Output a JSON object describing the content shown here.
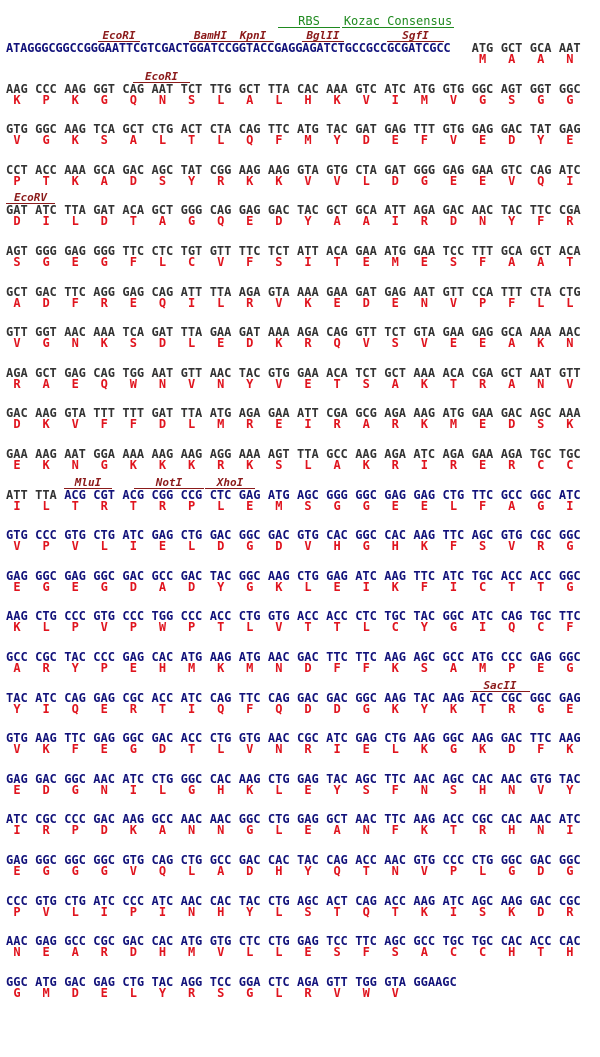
{
  "colors": {
    "vector_dna": "#333333",
    "insert_dna": "#12127a",
    "amino_acid": "#e0141e",
    "restriction_site": "#8b1a1a",
    "feature": "#1f8a1f"
  },
  "leader_sequence": "ATAGGGCGGCCGGGAATTCGTCGACTGGATCCGGTACCGAGGAGATCTGCCGCCGCGATCGCC",
  "insert_start": {
    "row": 11,
    "codon": 2
  },
  "features": [
    {
      "name": "RBS"
    },
    {
      "name": "Kozac Consensus"
    }
  ],
  "sites": [
    {
      "name": "EcoRI",
      "row": 0
    },
    {
      "name": "BamHI",
      "row": 0
    },
    {
      "name": "KpnI",
      "row": 0
    },
    {
      "name": "BglII",
      "row": 0
    },
    {
      "name": "SgfI",
      "row": 0
    },
    {
      "name": "EcoRI",
      "row": 1
    },
    {
      "name": "EcoRV",
      "row": 4
    },
    {
      "name": "MluI",
      "row": 11
    },
    {
      "name": "NotI",
      "row": 11
    },
    {
      "name": "XhoI",
      "row": 11
    },
    {
      "name": "SacII",
      "row": 16
    }
  ],
  "rows": [
    {
      "codons": [
        "ATG",
        "GCT",
        "GCA",
        "AAT"
      ],
      "aa": [
        "M",
        "A",
        "A",
        "N"
      ]
    },
    {
      "codons": [
        "AAG",
        "CCC",
        "AAG",
        "GGT",
        "CAG",
        "AAT",
        "TCT",
        "TTG",
        "GCT",
        "TTA",
        "CAC",
        "AAA",
        "GTC",
        "ATC",
        "ATG",
        "GTG",
        "GGC",
        "AGT",
        "GGT",
        "GGC"
      ],
      "aa": [
        "K",
        "P",
        "K",
        "G",
        "Q",
        "N",
        "S",
        "L",
        "A",
        "L",
        "H",
        "K",
        "V",
        "I",
        "M",
        "V",
        "G",
        "S",
        "G",
        "G"
      ]
    },
    {
      "codons": [
        "GTG",
        "GGC",
        "AAG",
        "TCA",
        "GCT",
        "CTG",
        "ACT",
        "CTA",
        "CAG",
        "TTC",
        "ATG",
        "TAC",
        "GAT",
        "GAG",
        "TTT",
        "GTG",
        "GAG",
        "GAC",
        "TAT",
        "GAG"
      ],
      "aa": [
        "V",
        "G",
        "K",
        "S",
        "A",
        "L",
        "T",
        "L",
        "Q",
        "F",
        "M",
        "Y",
        "D",
        "E",
        "F",
        "V",
        "E",
        "D",
        "Y",
        "E"
      ]
    },
    {
      "codons": [
        "CCT",
        "ACC",
        "AAA",
        "GCA",
        "GAC",
        "AGC",
        "TAT",
        "CGG",
        "AAG",
        "AAG",
        "GTA",
        "GTG",
        "CTA",
        "GAT",
        "GGG",
        "GAG",
        "GAA",
        "GTC",
        "CAG",
        "ATC"
      ],
      "aa": [
        "P",
        "T",
        "K",
        "A",
        "D",
        "S",
        "Y",
        "R",
        "K",
        "K",
        "V",
        "V",
        "L",
        "D",
        "G",
        "E",
        "E",
        "V",
        "Q",
        "I"
      ]
    },
    {
      "codons": [
        "GAT",
        "ATC",
        "TTA",
        "GAT",
        "ACA",
        "GCT",
        "GGG",
        "CAG",
        "GAG",
        "GAC",
        "TAC",
        "GCT",
        "GCA",
        "ATT",
        "AGA",
        "GAC",
        "AAC",
        "TAC",
        "TTC",
        "CGA"
      ],
      "aa": [
        "D",
        "I",
        "L",
        "D",
        "T",
        "A",
        "G",
        "Q",
        "E",
        "D",
        "Y",
        "A",
        "A",
        "I",
        "R",
        "D",
        "N",
        "Y",
        "F",
        "R"
      ]
    },
    {
      "codons": [
        "AGT",
        "GGG",
        "GAG",
        "GGG",
        "TTC",
        "CTC",
        "TGT",
        "GTT",
        "TTC",
        "TCT",
        "ATT",
        "ACA",
        "GAA",
        "ATG",
        "GAA",
        "TCC",
        "TTT",
        "GCA",
        "GCT",
        "ACA"
      ],
      "aa": [
        "S",
        "G",
        "E",
        "G",
        "F",
        "L",
        "C",
        "V",
        "F",
        "S",
        "I",
        "T",
        "E",
        "M",
        "E",
        "S",
        "F",
        "A",
        "A",
        "T"
      ]
    },
    {
      "codons": [
        "GCT",
        "GAC",
        "TTC",
        "AGG",
        "GAG",
        "CAG",
        "ATT",
        "TTA",
        "AGA",
        "GTA",
        "AAA",
        "GAA",
        "GAT",
        "GAG",
        "AAT",
        "GTT",
        "CCA",
        "TTT",
        "CTA",
        "CTG"
      ],
      "aa": [
        "A",
        "D",
        "F",
        "R",
        "E",
        "Q",
        "I",
        "L",
        "R",
        "V",
        "K",
        "E",
        "D",
        "E",
        "N",
        "V",
        "P",
        "F",
        "L",
        "L"
      ]
    },
    {
      "codons": [
        "GTT",
        "GGT",
        "AAC",
        "AAA",
        "TCA",
        "GAT",
        "TTA",
        "GAA",
        "GAT",
        "AAA",
        "AGA",
        "CAG",
        "GTT",
        "TCT",
        "GTA",
        "GAA",
        "GAG",
        "GCA",
        "AAA",
        "AAC"
      ],
      "aa": [
        "V",
        "G",
        "N",
        "K",
        "S",
        "D",
        "L",
        "E",
        "D",
        "K",
        "R",
        "Q",
        "V",
        "S",
        "V",
        "E",
        "E",
        "A",
        "K",
        "N"
      ]
    },
    {
      "codons": [
        "AGA",
        "GCT",
        "GAG",
        "CAG",
        "TGG",
        "AAT",
        "GTT",
        "AAC",
        "TAC",
        "GTG",
        "GAA",
        "ACA",
        "TCT",
        "GCT",
        "AAA",
        "ACA",
        "CGA",
        "GCT",
        "AAT",
        "GTT"
      ],
      "aa": [
        "R",
        "A",
        "E",
        "Q",
        "W",
        "N",
        "V",
        "N",
        "Y",
        "V",
        "E",
        "T",
        "S",
        "A",
        "K",
        "T",
        "R",
        "A",
        "N",
        "V"
      ]
    },
    {
      "codons": [
        "GAC",
        "AAG",
        "GTA",
        "TTT",
        "TTT",
        "GAT",
        "TTA",
        "ATG",
        "AGA",
        "GAA",
        "ATT",
        "CGA",
        "GCG",
        "AGA",
        "AAG",
        "ATG",
        "GAA",
        "GAC",
        "AGC",
        "AAA"
      ],
      "aa": [
        "D",
        "K",
        "V",
        "F",
        "F",
        "D",
        "L",
        "M",
        "R",
        "E",
        "I",
        "R",
        "A",
        "R",
        "K",
        "M",
        "E",
        "D",
        "S",
        "K"
      ]
    },
    {
      "codons": [
        "GAA",
        "AAG",
        "AAT",
        "GGA",
        "AAA",
        "AAG",
        "AAG",
        "AGG",
        "AAA",
        "AGT",
        "TTA",
        "GCC",
        "AAG",
        "AGA",
        "ATC",
        "AGA",
        "GAA",
        "AGA",
        "TGC",
        "TGC"
      ],
      "aa": [
        "E",
        "K",
        "N",
        "G",
        "K",
        "K",
        "K",
        "R",
        "K",
        "S",
        "L",
        "A",
        "K",
        "R",
        "I",
        "R",
        "E",
        "R",
        "C",
        "C"
      ]
    },
    {
      "codons": [
        "ATT",
        "TTA",
        "ACG",
        "CGT",
        "ACG",
        "CGG",
        "CCG",
        "CTC",
        "GAG",
        "ATG",
        "AGC",
        "GGG",
        "GGC",
        "GAG",
        "GAG",
        "CTG",
        "TTC",
        "GCC",
        "GGC",
        "ATC"
      ],
      "aa": [
        "I",
        "L",
        "T",
        "R",
        "T",
        "R",
        "P",
        "L",
        "E",
        "M",
        "S",
        "G",
        "G",
        "E",
        "E",
        "L",
        "F",
        "A",
        "G",
        "I"
      ]
    },
    {
      "codons": [
        "GTG",
        "CCC",
        "GTG",
        "CTG",
        "ATC",
        "GAG",
        "CTG",
        "GAC",
        "GGC",
        "GAC",
        "GTG",
        "CAC",
        "GGC",
        "CAC",
        "AAG",
        "TTC",
        "AGC",
        "GTG",
        "CGC",
        "GGC"
      ],
      "aa": [
        "V",
        "P",
        "V",
        "L",
        "I",
        "E",
        "L",
        "D",
        "G",
        "D",
        "V",
        "H",
        "G",
        "H",
        "K",
        "F",
        "S",
        "V",
        "R",
        "G"
      ]
    },
    {
      "codons": [
        "GAG",
        "GGC",
        "GAG",
        "GGC",
        "GAC",
        "GCC",
        "GAC",
        "TAC",
        "GGC",
        "AAG",
        "CTG",
        "GAG",
        "ATC",
        "AAG",
        "TTC",
        "ATC",
        "TGC",
        "ACC",
        "ACC",
        "GGC"
      ],
      "aa": [
        "E",
        "G",
        "E",
        "G",
        "D",
        "A",
        "D",
        "Y",
        "G",
        "K",
        "L",
        "E",
        "I",
        "K",
        "F",
        "I",
        "C",
        "T",
        "T",
        "G"
      ]
    },
    {
      "codons": [
        "AAG",
        "CTG",
        "CCC",
        "GTG",
        "CCC",
        "TGG",
        "CCC",
        "ACC",
        "CTG",
        "GTG",
        "ACC",
        "ACC",
        "CTC",
        "TGC",
        "TAC",
        "GGC",
        "ATC",
        "CAG",
        "TGC",
        "TTC"
      ],
      "aa": [
        "K",
        "L",
        "P",
        "V",
        "P",
        "W",
        "P",
        "T",
        "L",
        "V",
        "T",
        "T",
        "L",
        "C",
        "Y",
        "G",
        "I",
        "Q",
        "C",
        "F"
      ]
    },
    {
      "codons": [
        "GCC",
        "CGC",
        "TAC",
        "CCC",
        "GAG",
        "CAC",
        "ATG",
        "AAG",
        "ATG",
        "AAC",
        "GAC",
        "TTC",
        "TTC",
        "AAG",
        "AGC",
        "GCC",
        "ATG",
        "CCC",
        "GAG",
        "GGC"
      ],
      "aa": [
        "A",
        "R",
        "Y",
        "P",
        "E",
        "H",
        "M",
        "K",
        "M",
        "N",
        "D",
        "F",
        "F",
        "K",
        "S",
        "A",
        "M",
        "P",
        "E",
        "G"
      ]
    },
    {
      "codons": [
        "TAC",
        "ATC",
        "CAG",
        "GAG",
        "CGC",
        "ACC",
        "ATC",
        "CAG",
        "TTC",
        "CAG",
        "GAC",
        "GAC",
        "GGC",
        "AAG",
        "TAC",
        "AAG",
        "ACC",
        "CGC",
        "GGC",
        "GAG"
      ],
      "aa": [
        "Y",
        "I",
        "Q",
        "E",
        "R",
        "T",
        "I",
        "Q",
        "F",
        "Q",
        "D",
        "D",
        "G",
        "K",
        "Y",
        "K",
        "T",
        "R",
        "G",
        "E"
      ]
    },
    {
      "codons": [
        "GTG",
        "AAG",
        "TTC",
        "GAG",
        "GGC",
        "GAC",
        "ACC",
        "CTG",
        "GTG",
        "AAC",
        "CGC",
        "ATC",
        "GAG",
        "CTG",
        "AAG",
        "GGC",
        "AAG",
        "GAC",
        "TTC",
        "AAG"
      ],
      "aa": [
        "V",
        "K",
        "F",
        "E",
        "G",
        "D",
        "T",
        "L",
        "V",
        "N",
        "R",
        "I",
        "E",
        "L",
        "K",
        "G",
        "K",
        "D",
        "F",
        "K"
      ]
    },
    {
      "codons": [
        "GAG",
        "GAC",
        "GGC",
        "AAC",
        "ATC",
        "CTG",
        "GGC",
        "CAC",
        "AAG",
        "CTG",
        "GAG",
        "TAC",
        "AGC",
        "TTC",
        "AAC",
        "AGC",
        "CAC",
        "AAC",
        "GTG",
        "TAC"
      ],
      "aa": [
        "E",
        "D",
        "G",
        "N",
        "I",
        "L",
        "G",
        "H",
        "K",
        "L",
        "E",
        "Y",
        "S",
        "F",
        "N",
        "S",
        "H",
        "N",
        "V",
        "Y"
      ]
    },
    {
      "codons": [
        "ATC",
        "CGC",
        "CCC",
        "GAC",
        "AAG",
        "GCC",
        "AAC",
        "AAC",
        "GGC",
        "CTG",
        "GAG",
        "GCT",
        "AAC",
        "TTC",
        "AAG",
        "ACC",
        "CGC",
        "CAC",
        "AAC",
        "ATC"
      ],
      "aa": [
        "I",
        "R",
        "P",
        "D",
        "K",
        "A",
        "N",
        "N",
        "G",
        "L",
        "E",
        "A",
        "N",
        "F",
        "K",
        "T",
        "R",
        "H",
        "N",
        "I"
      ]
    },
    {
      "codons": [
        "GAG",
        "GGC",
        "GGC",
        "GGC",
        "GTG",
        "CAG",
        "CTG",
        "GCC",
        "GAC",
        "CAC",
        "TAC",
        "CAG",
        "ACC",
        "AAC",
        "GTG",
        "CCC",
        "CTG",
        "GGC",
        "GAC",
        "GGC"
      ],
      "aa": [
        "E",
        "G",
        "G",
        "G",
        "V",
        "Q",
        "L",
        "A",
        "D",
        "H",
        "Y",
        "Q",
        "T",
        "N",
        "V",
        "P",
        "L",
        "G",
        "D",
        "G"
      ]
    },
    {
      "codons": [
        "CCC",
        "GTG",
        "CTG",
        "ATC",
        "CCC",
        "ATC",
        "AAC",
        "CAC",
        "TAC",
        "CTG",
        "AGC",
        "ACT",
        "CAG",
        "ACC",
        "AAG",
        "ATC",
        "AGC",
        "AAG",
        "GAC",
        "CGC"
      ],
      "aa": [
        "P",
        "V",
        "L",
        "I",
        "P",
        "I",
        "N",
        "H",
        "Y",
        "L",
        "S",
        "T",
        "Q",
        "T",
        "K",
        "I",
        "S",
        "K",
        "D",
        "R"
      ]
    },
    {
      "codons": [
        "AAC",
        "GAG",
        "GCC",
        "CGC",
        "GAC",
        "CAC",
        "ATG",
        "GTG",
        "CTC",
        "CTG",
        "GAG",
        "TCC",
        "TTC",
        "AGC",
        "GCC",
        "TGC",
        "TGC",
        "CAC",
        "ACC",
        "CAC"
      ],
      "aa": [
        "N",
        "E",
        "A",
        "R",
        "D",
        "H",
        "M",
        "V",
        "L",
        "L",
        "E",
        "S",
        "F",
        "S",
        "A",
        "C",
        "C",
        "H",
        "T",
        "H"
      ]
    },
    {
      "codons": [
        "GGC",
        "ATG",
        "GAC",
        "GAG",
        "CTG",
        "TAC",
        "AGG",
        "TCC",
        "GGA",
        "CTC",
        "AGA",
        "GTT",
        "TGG",
        "GTA",
        "GGAAGC"
      ],
      "aa": [
        "G",
        "M",
        "D",
        "E",
        "L",
        "Y",
        "R",
        "S",
        "G",
        "L",
        "R",
        "V",
        "W",
        "V"
      ]
    }
  ]
}
